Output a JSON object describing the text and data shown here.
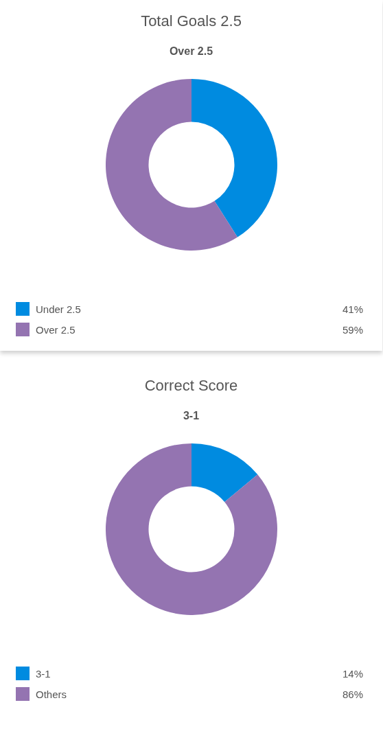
{
  "chart_data": [
    {
      "type": "donut",
      "title": "Total Goals 2.5",
      "subtitle": "Over 2.5",
      "categories": [
        "Under 2.5",
        "Over 2.5"
      ],
      "values": [
        41,
        59
      ],
      "value_labels": [
        "41%",
        "59%"
      ],
      "colors": [
        "#008be0",
        "#9474b1"
      ],
      "legend": "bottom"
    },
    {
      "type": "donut",
      "title": "Correct Score",
      "subtitle": "3-1",
      "categories": [
        "3-1",
        "Others"
      ],
      "values": [
        14,
        86
      ],
      "value_labels": [
        "14%",
        "86%"
      ],
      "colors": [
        "#008be0",
        "#9474b1"
      ],
      "legend": "bottom"
    }
  ]
}
